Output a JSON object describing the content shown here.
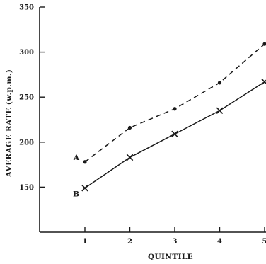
{
  "chart_data": {
    "type": "line",
    "xlabel": "QUINTILE",
    "ylabel": "AVERAGE RATE (w.p.m.)",
    "x": [
      1,
      2,
      3,
      4,
      5
    ],
    "xticks": [
      "1",
      "2",
      "3",
      "4",
      "5"
    ],
    "ylim": [
      100,
      350
    ],
    "yticks": [
      "150",
      "200",
      "250",
      "300",
      "350"
    ],
    "grid": false,
    "series": [
      {
        "name": "A",
        "values": [
          178,
          216,
          237,
          266,
          309
        ],
        "style": "dashed",
        "marker": "dot",
        "color": "#1a1a1a"
      },
      {
        "name": "B",
        "values": [
          149,
          183,
          209,
          235,
          267
        ],
        "style": "solid",
        "marker": "cross",
        "color": "#1a1a1a"
      }
    ]
  }
}
